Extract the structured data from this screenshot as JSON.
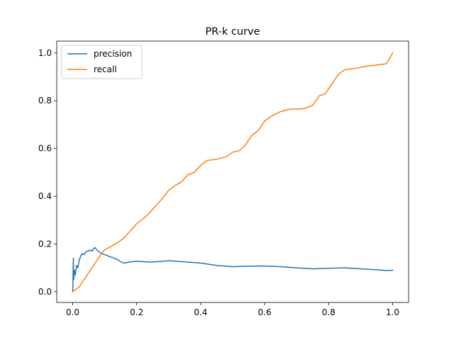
{
  "chart_data": {
    "type": "line",
    "title": "PR-k curve",
    "xlabel": "",
    "ylabel": "",
    "xlim": [
      -0.05,
      1.05
    ],
    "ylim": [
      -0.045,
      1.05
    ],
    "xticks": [
      "0.0",
      "0.2",
      "0.4",
      "0.6",
      "0.8",
      "1.0"
    ],
    "yticks": [
      "0.0",
      "0.2",
      "0.4",
      "0.6",
      "0.8",
      "1.0"
    ],
    "grid": false,
    "legend_placement": "upper-left",
    "series": [
      {
        "name": "precision",
        "color": "#1f77b4",
        "points": [
          [
            0.0,
            0.0
          ],
          [
            0.002,
            0.14
          ],
          [
            0.003,
            0.05
          ],
          [
            0.005,
            0.09
          ],
          [
            0.008,
            0.07
          ],
          [
            0.012,
            0.11
          ],
          [
            0.016,
            0.1
          ],
          [
            0.02,
            0.13
          ],
          [
            0.025,
            0.15
          ],
          [
            0.03,
            0.16
          ],
          [
            0.035,
            0.155
          ],
          [
            0.04,
            0.165
          ],
          [
            0.045,
            0.17
          ],
          [
            0.05,
            0.17
          ],
          [
            0.055,
            0.175
          ],
          [
            0.06,
            0.17
          ],
          [
            0.065,
            0.18
          ],
          [
            0.07,
            0.185
          ],
          [
            0.075,
            0.175
          ],
          [
            0.08,
            0.17
          ],
          [
            0.085,
            0.165
          ],
          [
            0.09,
            0.16
          ],
          [
            0.1,
            0.155
          ],
          [
            0.11,
            0.15
          ],
          [
            0.12,
            0.145
          ],
          [
            0.13,
            0.14
          ],
          [
            0.14,
            0.135
          ],
          [
            0.15,
            0.125
          ],
          [
            0.16,
            0.12
          ],
          [
            0.18,
            0.125
          ],
          [
            0.2,
            0.128
          ],
          [
            0.24,
            0.124
          ],
          [
            0.28,
            0.127
          ],
          [
            0.3,
            0.13
          ],
          [
            0.34,
            0.126
          ],
          [
            0.4,
            0.12
          ],
          [
            0.45,
            0.11
          ],
          [
            0.5,
            0.105
          ],
          [
            0.55,
            0.107
          ],
          [
            0.6,
            0.108
          ],
          [
            0.65,
            0.105
          ],
          [
            0.7,
            0.1
          ],
          [
            0.75,
            0.096
          ],
          [
            0.8,
            0.098
          ],
          [
            0.85,
            0.1
          ],
          [
            0.9,
            0.096
          ],
          [
            0.95,
            0.092
          ],
          [
            0.98,
            0.089
          ],
          [
            1.0,
            0.09
          ]
        ]
      },
      {
        "name": "recall",
        "color": "#ff7f0e",
        "points": [
          [
            0.0,
            0.0
          ],
          [
            0.01,
            0.01
          ],
          [
            0.02,
            0.02
          ],
          [
            0.03,
            0.04
          ],
          [
            0.04,
            0.06
          ],
          [
            0.05,
            0.08
          ],
          [
            0.06,
            0.1
          ],
          [
            0.07,
            0.12
          ],
          [
            0.08,
            0.14
          ],
          [
            0.09,
            0.16
          ],
          [
            0.1,
            0.175
          ],
          [
            0.12,
            0.19
          ],
          [
            0.14,
            0.205
          ],
          [
            0.16,
            0.225
          ],
          [
            0.18,
            0.255
          ],
          [
            0.2,
            0.285
          ],
          [
            0.22,
            0.305
          ],
          [
            0.24,
            0.33
          ],
          [
            0.26,
            0.36
          ],
          [
            0.28,
            0.39
          ],
          [
            0.3,
            0.425
          ],
          [
            0.32,
            0.445
          ],
          [
            0.34,
            0.46
          ],
          [
            0.36,
            0.49
          ],
          [
            0.38,
            0.5
          ],
          [
            0.4,
            0.53
          ],
          [
            0.42,
            0.55
          ],
          [
            0.45,
            0.555
          ],
          [
            0.48,
            0.565
          ],
          [
            0.5,
            0.585
          ],
          [
            0.52,
            0.59
          ],
          [
            0.54,
            0.615
          ],
          [
            0.56,
            0.655
          ],
          [
            0.58,
            0.675
          ],
          [
            0.6,
            0.715
          ],
          [
            0.62,
            0.735
          ],
          [
            0.65,
            0.755
          ],
          [
            0.68,
            0.765
          ],
          [
            0.71,
            0.765
          ],
          [
            0.73,
            0.77
          ],
          [
            0.75,
            0.78
          ],
          [
            0.77,
            0.82
          ],
          [
            0.79,
            0.83
          ],
          [
            0.81,
            0.87
          ],
          [
            0.83,
            0.91
          ],
          [
            0.85,
            0.93
          ],
          [
            0.88,
            0.935
          ],
          [
            0.9,
            0.94
          ],
          [
            0.92,
            0.945
          ],
          [
            0.95,
            0.95
          ],
          [
            0.98,
            0.955
          ],
          [
            0.99,
            0.975
          ],
          [
            1.0,
            1.0
          ]
        ]
      }
    ]
  }
}
